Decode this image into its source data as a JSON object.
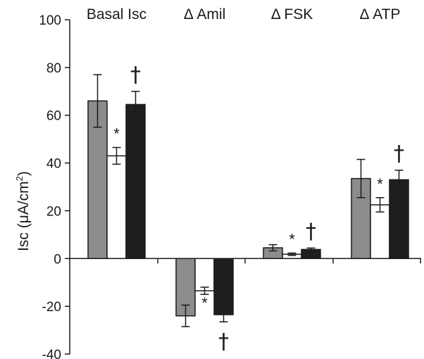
{
  "chart_data": {
    "type": "bar",
    "categories": [
      "Basal Isc",
      "Δ Amil",
      "Δ FSK",
      "Δ ATP"
    ],
    "series": [
      {
        "values": [
          66,
          -24,
          4.5,
          33.5
        ],
        "error": [
          11,
          4.5,
          1.3,
          8
        ],
        "color": "#8c8c8c"
      },
      {
        "values": [
          43,
          -13.5,
          1.8,
          22.5
        ],
        "error": [
          3.5,
          1.5,
          0.5,
          3
        ],
        "color": "#ffffff"
      },
      {
        "values": [
          64.5,
          -23.5,
          3.8,
          33
        ],
        "error": [
          5.5,
          3,
          0.6,
          4
        ],
        "color": "#1e1e1e"
      }
    ],
    "annotations": [
      {
        "category": 0,
        "series": 1,
        "text": "*",
        "kind": "star"
      },
      {
        "category": 0,
        "series": 2,
        "text": "†",
        "kind": "dagger"
      },
      {
        "category": 1,
        "series": 1,
        "text": "*",
        "kind": "star"
      },
      {
        "category": 1,
        "series": 2,
        "text": "†",
        "kind": "dagger"
      },
      {
        "category": 2,
        "series": 1,
        "text": "*",
        "kind": "star"
      },
      {
        "category": 2,
        "series": 2,
        "text": "†",
        "kind": "dagger"
      },
      {
        "category": 3,
        "series": 1,
        "text": "*",
        "kind": "star"
      },
      {
        "category": 3,
        "series": 2,
        "text": "†",
        "kind": "dagger"
      }
    ],
    "yticks": [
      "-40",
      "-20",
      "0",
      "20",
      "40",
      "60",
      "80",
      "100"
    ],
    "ylim": [
      -40,
      100
    ],
    "ylabel": "Isc (μA/cm",
    "ylabel_sup": "2",
    "ylabel_close": ")",
    "xlabel": "",
    "title": "",
    "grid": false,
    "legend": "none"
  }
}
